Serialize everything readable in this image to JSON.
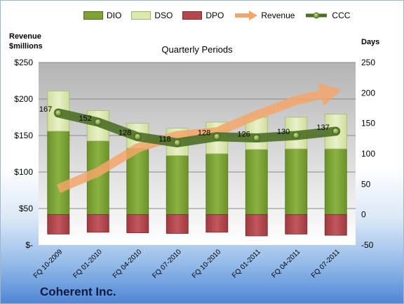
{
  "company": "Coherent Inc.",
  "chart_data": {
    "type": "bar",
    "title": "Quarterly Periods",
    "categories": [
      "FQ 10-2009",
      "FQ 01-2010",
      "FQ 04-2010",
      "FQ 07-2010",
      "FQ 10-2010",
      "FQ 01-2011",
      "FQ 04-2011",
      "FQ 07-2011"
    ],
    "ylabel_left": "Revenue\n$millions",
    "ylabel_right": "Days",
    "left_ticks": [
      "$-",
      "$50",
      "$100",
      "$150",
      "$200",
      "$250"
    ],
    "right_ticks": [
      "-50",
      "0",
      "50",
      "100",
      "150",
      "200",
      "250"
    ],
    "ylim_left": [
      0,
      250
    ],
    "ylim_right": [
      -50,
      250
    ],
    "legend": [
      "DIO",
      "DSO",
      "DPO",
      "Revenue",
      "CCC"
    ],
    "legend_position": "top",
    "grid": true,
    "series": [
      {
        "name": "DIO",
        "axis": "right",
        "values": [
          137,
          121,
          109,
          97,
          100,
          107,
          108,
          108
        ],
        "color": "#7fa336"
      },
      {
        "name": "DSO",
        "axis": "right",
        "values": [
          66,
          50,
          41,
          45,
          52,
          53,
          52,
          57
        ],
        "color": "#dbe8b0"
      },
      {
        "name": "DPO",
        "axis": "right",
        "values": [
          -32,
          -29,
          -30,
          -31,
          -29,
          -35,
          -32,
          -34
        ],
        "color": "#b5484e"
      },
      {
        "name": "Revenue",
        "axis": "left",
        "values": [
          77,
          100,
          133,
          150,
          155,
          178,
          198,
          211
        ],
        "color": "#f2a66a"
      },
      {
        "name": "CCC",
        "axis": "right",
        "values": [
          167,
          152,
          128,
          118,
          128,
          126,
          130,
          137
        ],
        "color": "#4d6e25"
      }
    ],
    "ccc_labels": [
      "167",
      "152",
      "128",
      "118",
      "128",
      "126",
      "130",
      "137"
    ]
  }
}
